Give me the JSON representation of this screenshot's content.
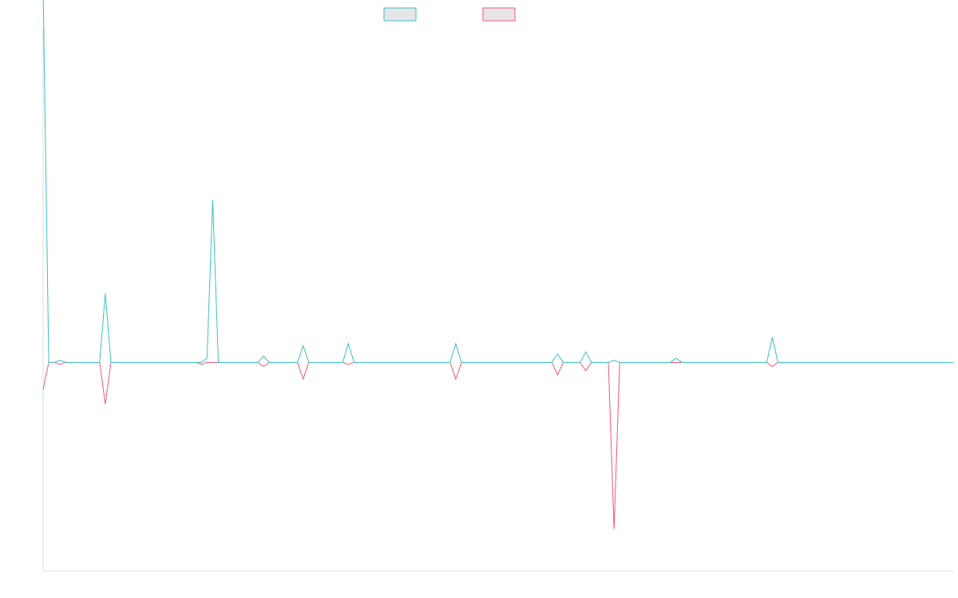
{
  "chart_data": {
    "type": "line",
    "title": "",
    "xlabel": "",
    "ylabel": "",
    "legend_position": "top-center",
    "grid": false,
    "ylim": [
      -100,
      160
    ],
    "colors": {
      "series_1": "#3bbfc2",
      "series_2": "#f0547a",
      "legend_fill": "#e6e6e6",
      "axis": "#dddddd"
    },
    "series": [
      {
        "values": [
          180,
          0,
          0,
          1,
          0,
          0,
          0,
          0,
          0,
          0,
          0,
          33,
          0,
          0,
          0,
          0,
          0,
          0,
          0,
          0,
          0,
          0,
          0,
          0,
          0,
          0,
          0,
          0,
          0,
          2,
          78,
          0,
          0,
          0,
          0,
          0,
          0,
          0,
          0,
          3,
          0,
          0,
          0,
          0,
          0,
          0,
          8,
          0,
          0,
          0,
          0,
          0,
          0,
          0,
          9,
          0,
          0,
          0,
          0,
          0,
          0,
          0,
          0,
          0,
          0,
          0,
          0,
          0,
          0,
          0,
          0,
          0,
          0,
          9,
          0,
          0,
          0,
          0,
          0,
          0,
          0,
          0,
          0,
          0,
          0,
          0,
          0,
          0,
          0,
          0,
          0,
          4,
          0,
          0,
          0,
          0,
          5,
          0,
          0,
          0,
          0,
          1,
          0,
          0,
          0,
          0,
          0,
          0,
          0,
          0,
          0,
          0,
          2,
          0,
          0,
          0,
          0,
          0,
          0,
          0,
          0,
          0,
          0,
          0,
          0,
          0,
          0,
          0,
          0,
          12,
          0,
          0,
          0,
          0,
          0,
          0,
          0,
          0,
          0,
          0,
          0,
          0,
          0,
          0,
          0,
          0,
          0,
          0,
          0,
          0,
          0,
          0,
          0,
          0,
          0,
          0,
          0,
          0,
          0,
          0,
          0,
          0
        ]
      },
      {
        "values": [
          -13,
          0,
          0,
          -1,
          0,
          0,
          0,
          0,
          0,
          0,
          0,
          -20,
          0,
          0,
          0,
          0,
          0,
          0,
          0,
          0,
          0,
          0,
          0,
          0,
          0,
          0,
          0,
          0,
          -1,
          0,
          0,
          0,
          0,
          0,
          0,
          0,
          0,
          0,
          0,
          -2,
          0,
          0,
          0,
          0,
          0,
          0,
          -8,
          0,
          0,
          0,
          0,
          0,
          0,
          0,
          -1,
          0,
          0,
          0,
          0,
          0,
          0,
          0,
          0,
          0,
          0,
          0,
          0,
          0,
          0,
          0,
          0,
          0,
          0,
          -8,
          0,
          0,
          0,
          0,
          0,
          0,
          0,
          0,
          0,
          0,
          0,
          0,
          0,
          0,
          0,
          0,
          0,
          -6,
          0,
          0,
          0,
          0,
          -4,
          0,
          0,
          0,
          0,
          -80,
          0,
          0,
          0,
          0,
          0,
          0,
          0,
          0,
          0,
          0,
          0,
          0,
          0,
          0,
          0,
          0,
          0,
          0,
          0,
          0,
          0,
          0,
          0,
          0,
          0,
          0,
          0,
          -2,
          0,
          0,
          0,
          0,
          0,
          0,
          0,
          0,
          0,
          0,
          0,
          0,
          0,
          0,
          0,
          0,
          0,
          0,
          0,
          0,
          0,
          0,
          0,
          0,
          0,
          0,
          0,
          0,
          0,
          0,
          0,
          0
        ]
      }
    ]
  }
}
